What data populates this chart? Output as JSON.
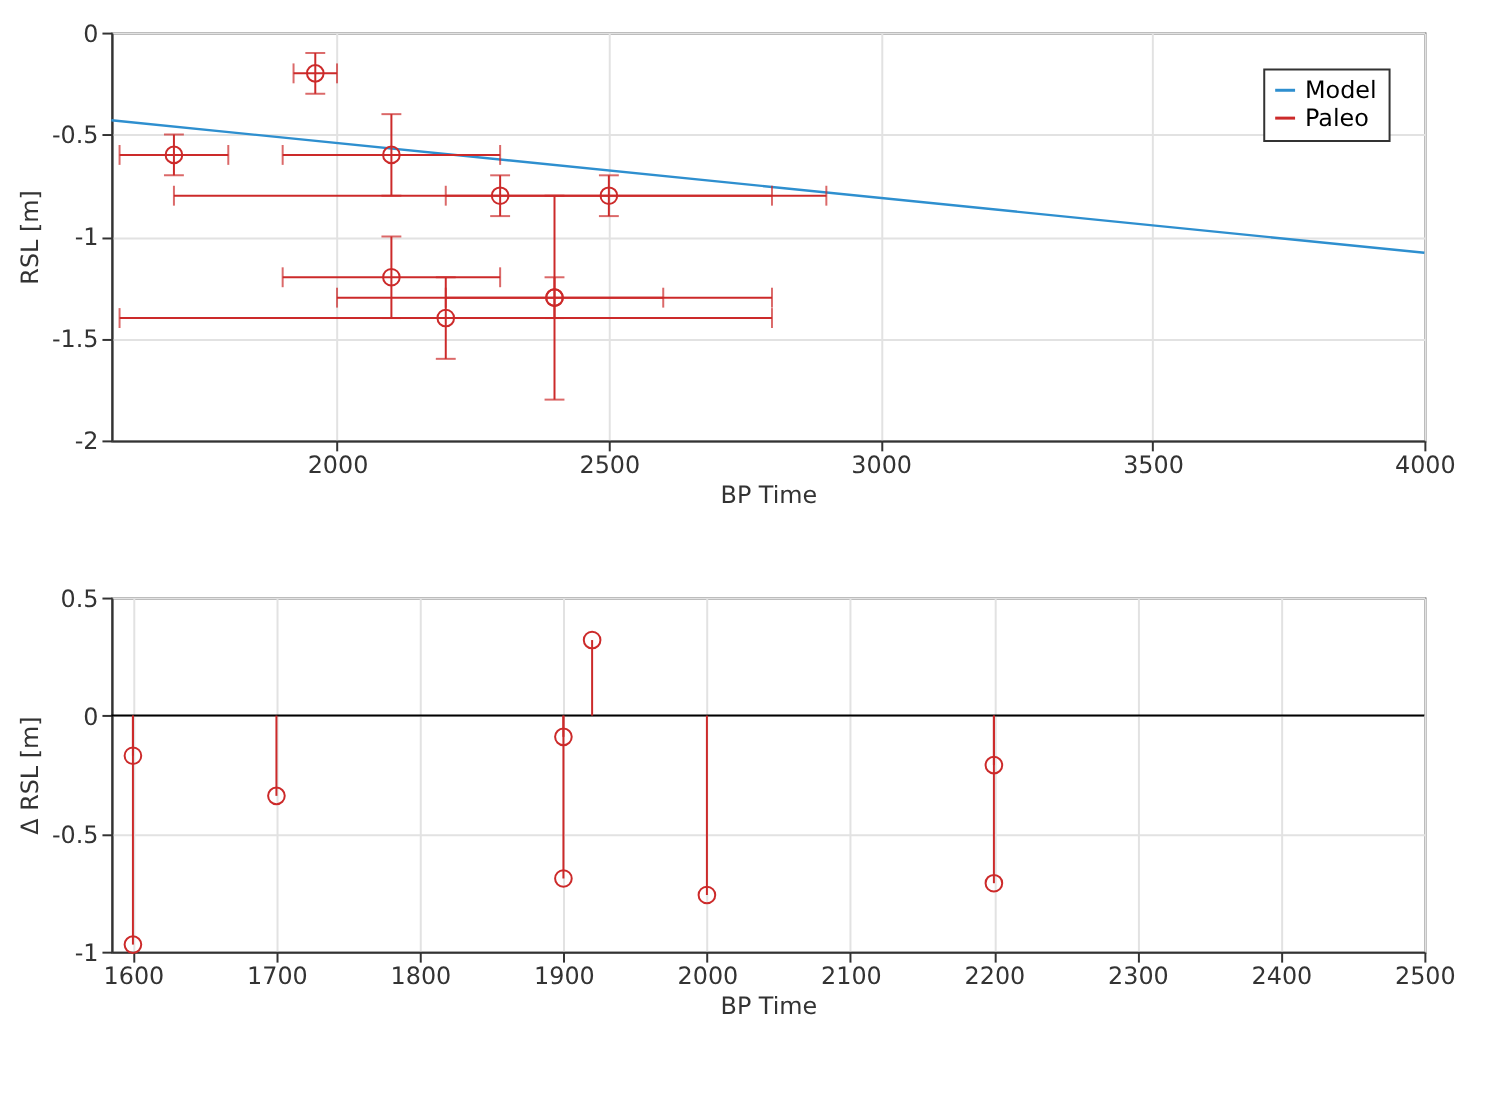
{
  "chart_data": [
    {
      "type": "scatter",
      "xlabel": "BP Time",
      "ylabel": "RSL [m]",
      "xlim": [
        1585,
        4000
      ],
      "ylim": [
        -2,
        0
      ],
      "xticks": [
        2000,
        2500,
        3000,
        3500,
        4000
      ],
      "yticks": [
        -2,
        -1.5,
        -1,
        -0.5,
        0
      ],
      "grid": true,
      "legend": "top right",
      "marker": "circle",
      "series": [
        {
          "name": "Model",
          "type": "line",
          "color": "#2e8fcf",
          "x": [
            1585,
            4000
          ],
          "values": [
            -0.43,
            -1.08
          ],
          "marker": "none"
        },
        {
          "name": "Paleo",
          "type": "scatter",
          "color": "#cc2a2a",
          "x": [
            1960,
            1700,
            2100,
            2300,
            2500,
            2100,
            2400,
            2400,
            2200
          ],
          "values": [
            -0.2,
            -0.6,
            -0.6,
            -0.8,
            -0.8,
            -1.2,
            -1.3,
            -1.3,
            -1.4
          ],
          "errors": [
            0.1,
            0.1,
            0.2,
            0.1,
            0.1,
            0.2,
            0.1,
            0.5,
            0.2
          ],
          "xerrors": [
            40,
            100,
            200,
            600,
            300,
            200,
            200,
            400,
            600
          ]
        }
      ]
    },
    {
      "type": "lollipop",
      "xlabel": "BP Time",
      "ylabel": "Δ RSL [m]",
      "xlim": [
        1585,
        2500
      ],
      "ylim": [
        -1,
        0.5
      ],
      "xticks": [
        1600,
        1700,
        1800,
        1900,
        2000,
        2100,
        2200,
        2300,
        2400,
        2500
      ],
      "yticks": [
        -1,
        -0.5,
        0,
        0.5
      ],
      "grid": true,
      "marker": "circle",
      "color": "#cc2a2a",
      "x": [
        1600,
        1600,
        1700,
        1900,
        1900,
        1920,
        2000,
        2200,
        2200
      ],
      "values": [
        -0.17,
        -0.97,
        -0.34,
        -0.09,
        -0.69,
        0.32,
        -0.76,
        -0.21,
        -0.71
      ],
      "ref_lines": [
        {
          "axis": "y",
          "value": 0,
          "color": "#000000"
        }
      ]
    }
  ]
}
